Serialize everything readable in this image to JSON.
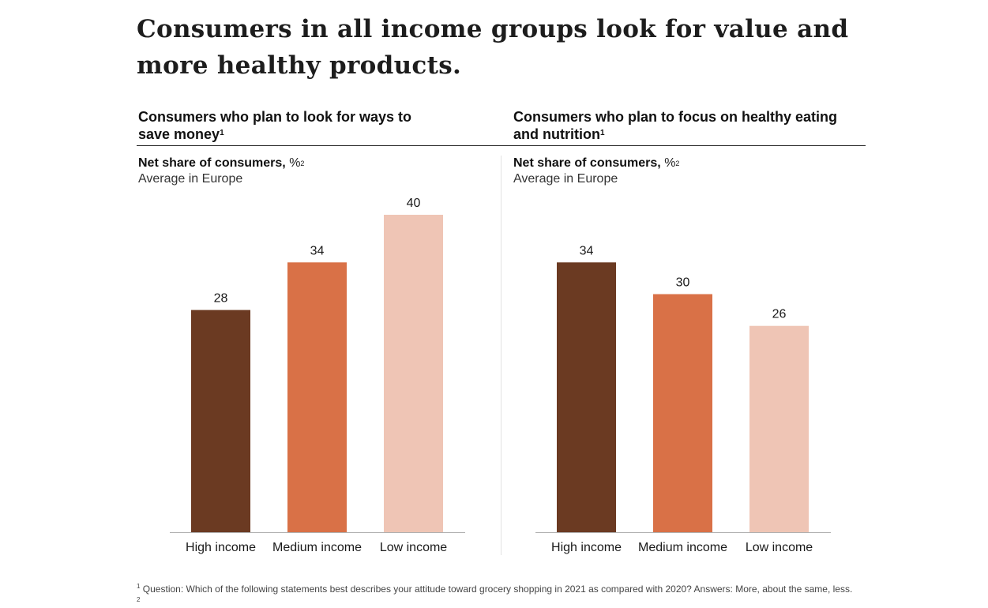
{
  "title": "Consumers in all income groups look for value and more healthy products.",
  "colors": {
    "high_income": "#6b3a22",
    "medium_income": "#d97147",
    "low_income": "#efc5b5",
    "axis": "#b0b0b0"
  },
  "chart_data": [
    {
      "type": "bar",
      "title": "Consumers who plan to look for ways to save money",
      "title_footnote": "1",
      "ylabel": "Net share of consumers,",
      "ylabel_unit": "%",
      "ylabel_footnote": "2",
      "subtitle": "Average in Europe",
      "xlabel": "",
      "categories": [
        "High income",
        "Medium income",
        "Low income"
      ],
      "values": [
        28,
        34,
        40
      ],
      "data_labels": [
        "28",
        "34",
        "40"
      ],
      "ylim": [
        0,
        40
      ],
      "grid": false,
      "legend": "none"
    },
    {
      "type": "bar",
      "title": "Consumers who plan to focus on healthy eating and nutrition",
      "title_footnote": "1",
      "ylabel": "Net share of consumers,",
      "ylabel_unit": "%",
      "ylabel_footnote": "2",
      "subtitle": "Average in Europe",
      "xlabel": "",
      "categories": [
        "High income",
        "Medium income",
        "Low income"
      ],
      "values": [
        34,
        30,
        26
      ],
      "data_labels": [
        "34",
        "30",
        "26"
      ],
      "ylim": [
        0,
        40
      ],
      "grid": false,
      "legend": "none"
    }
  ],
  "footnotes": [
    {
      "marker": "1",
      "text": "Question: Which of the following statements best describes your attitude toward grocery shopping in 2021 as compared with 2020? Answers: More, about the same, less."
    },
    {
      "marker": "2",
      "text": ""
    }
  ]
}
